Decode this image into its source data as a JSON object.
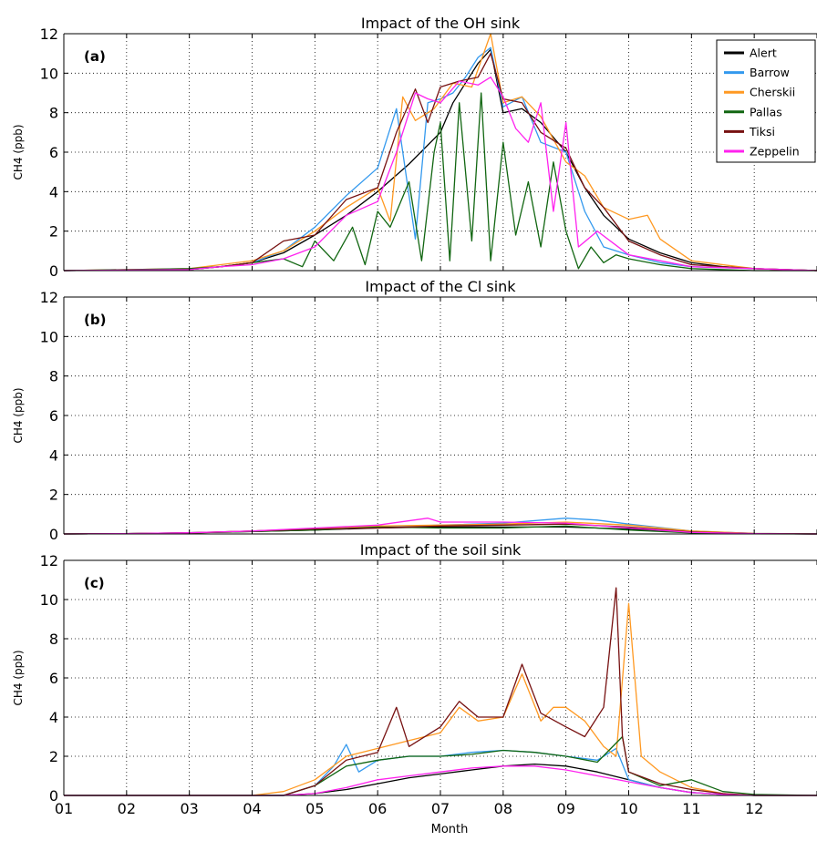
{
  "figure": {
    "xlabel": "Month",
    "month_ticks": [
      "01",
      "02",
      "03",
      "04",
      "05",
      "06",
      "07",
      "08",
      "09",
      "10",
      "11",
      "12"
    ]
  },
  "legend": {
    "placement": "top-right of panel (a)",
    "entries": [
      {
        "name": "Alert",
        "color": "#000000"
      },
      {
        "name": "Barrow",
        "color": "#3399ee"
      },
      {
        "name": "Cherskii",
        "color": "#ff9922"
      },
      {
        "name": "Pallas",
        "color": "#116611"
      },
      {
        "name": "Tiksi",
        "color": "#771111"
      },
      {
        "name": "Zeppelin",
        "color": "#ff22ee"
      }
    ]
  },
  "chart_data": [
    {
      "type": "line",
      "panel_label": "(a)",
      "title": "Impact of the OH sink",
      "ylabel": "CH4 (ppb)",
      "ylim": [
        0,
        12
      ],
      "yticks": [
        0,
        2,
        4,
        6,
        8,
        10,
        12
      ],
      "xlim": [
        1,
        13
      ],
      "grid": true,
      "series": [
        {
          "name": "Alert",
          "color": "#000000",
          "x": [
            1,
            3,
            3.5,
            4,
            4.5,
            5,
            5.5,
            6,
            6.5,
            7,
            7.2,
            7.4,
            7.6,
            7.8,
            8,
            8.3,
            8.6,
            9,
            9.3,
            9.6,
            10,
            10.5,
            11,
            11.5,
            12,
            13
          ],
          "y": [
            0,
            0.05,
            0.2,
            0.4,
            0.9,
            1.8,
            2.8,
            4,
            5.4,
            7,
            8.5,
            9.5,
            10.5,
            11.2,
            8,
            8.2,
            7.5,
            6,
            4.2,
            2.8,
            1.6,
            0.9,
            0.4,
            0.2,
            0.1,
            0
          ]
        },
        {
          "name": "Barrow",
          "color": "#3399ee",
          "x": [
            1,
            3,
            3.5,
            4,
            4.5,
            5,
            5.5,
            6,
            6.3,
            6.6,
            6.8,
            7,
            7.2,
            7.4,
            7.6,
            7.8,
            8,
            8.3,
            8.6,
            9,
            9.3,
            9.6,
            10,
            10.5,
            11,
            12,
            13
          ],
          "y": [
            0,
            0.05,
            0.2,
            0.4,
            1,
            2.2,
            3.8,
            5.2,
            8.2,
            1.6,
            8.5,
            8.7,
            9,
            9.8,
            10.8,
            11.3,
            8.3,
            8.8,
            6.5,
            6,
            3,
            1.2,
            0.8,
            0.4,
            0.2,
            0.1,
            0
          ]
        },
        {
          "name": "Cherskii",
          "color": "#ff9922",
          "x": [
            1,
            3,
            3.5,
            4,
            4.5,
            5,
            5.5,
            6,
            6.2,
            6.4,
            6.6,
            6.9,
            7.2,
            7.5,
            7.8,
            8,
            8.3,
            8.6,
            9,
            9.3,
            9.6,
            10,
            10.3,
            10.5,
            11,
            12,
            13
          ],
          "y": [
            0,
            0.1,
            0.3,
            0.5,
            1,
            2,
            3.2,
            4.2,
            2.5,
            8.8,
            7.6,
            8.2,
            9.5,
            9.3,
            12,
            8.5,
            8.8,
            7.8,
            5.5,
            4.8,
            3.2,
            2.6,
            2.8,
            1.6,
            0.5,
            0.1,
            0
          ]
        },
        {
          "name": "Pallas",
          "color": "#116611",
          "x": [
            1,
            3,
            3.5,
            4,
            4.5,
            4.8,
            5,
            5.3,
            5.6,
            5.8,
            6,
            6.2,
            6.5,
            6.7,
            6.9,
            7,
            7.15,
            7.3,
            7.5,
            7.65,
            7.8,
            8,
            8.2,
            8.4,
            8.6,
            8.8,
            9,
            9.2,
            9.4,
            9.6,
            9.8,
            10,
            10.5,
            11,
            12,
            13
          ],
          "y": [
            0,
            0.1,
            0.2,
            0.4,
            0.6,
            0.2,
            1.5,
            0.5,
            2.2,
            0.3,
            3,
            2.2,
            4.5,
            0.5,
            6,
            7.5,
            0.5,
            8.5,
            1.5,
            9,
            0.5,
            6.5,
            1.8,
            4.5,
            1.2,
            5.5,
            2,
            0.1,
            1.2,
            0.4,
            0.8,
            0.6,
            0.3,
            0.1,
            0,
            0
          ]
        },
        {
          "name": "Tiksi",
          "color": "#771111",
          "x": [
            1,
            3,
            3.5,
            4,
            4.5,
            5,
            5.5,
            6,
            6.3,
            6.6,
            6.8,
            7,
            7.3,
            7.6,
            7.8,
            8,
            8.3,
            8.6,
            9,
            9.3,
            9.6,
            10,
            10.5,
            11,
            12,
            13
          ],
          "y": [
            0,
            0.05,
            0.2,
            0.4,
            1.5,
            1.8,
            3.6,
            4.2,
            7,
            9.2,
            7.5,
            9.3,
            9.6,
            9.8,
            11,
            8.7,
            8.5,
            7,
            6.2,
            4.2,
            3.2,
            1.5,
            0.8,
            0.3,
            0.1,
            0
          ]
        },
        {
          "name": "Zeppelin",
          "color": "#ff22ee",
          "x": [
            1,
            3,
            3.5,
            4,
            4.5,
            5,
            5.5,
            6,
            6.3,
            6.6,
            6.8,
            7,
            7.3,
            7.6,
            7.8,
            8,
            8.2,
            8.4,
            8.6,
            8.8,
            9,
            9.2,
            9.5,
            10,
            10.5,
            11,
            12,
            13
          ],
          "y": [
            0,
            0.05,
            0.2,
            0.3,
            0.6,
            1.2,
            2.8,
            3.5,
            6,
            9,
            8.7,
            8.5,
            9.6,
            9.4,
            9.8,
            8.8,
            7.2,
            6.5,
            8.5,
            3,
            7.5,
            1.2,
            2,
            0.8,
            0.5,
            0.2,
            0.1,
            0
          ]
        }
      ]
    },
    {
      "type": "line",
      "panel_label": "(b)",
      "title": "Impact of the Cl sink",
      "ylabel": "CH4 (ppb)",
      "ylim": [
        0,
        12
      ],
      "yticks": [
        0,
        2,
        4,
        6,
        8,
        10,
        12
      ],
      "xlim": [
        1,
        13
      ],
      "grid": true,
      "series": [
        {
          "name": "Alert",
          "color": "#000000",
          "x": [
            1,
            2,
            3,
            4,
            5,
            6,
            7,
            8,
            9,
            10,
            11,
            12,
            13
          ],
          "y": [
            0,
            0.02,
            0.05,
            0.12,
            0.2,
            0.3,
            0.35,
            0.35,
            0.35,
            0.25,
            0.1,
            0.02,
            0
          ]
        },
        {
          "name": "Barrow",
          "color": "#3399ee",
          "x": [
            1,
            2,
            3,
            4,
            5,
            6,
            7,
            8,
            9,
            9.5,
            10,
            11,
            12,
            13
          ],
          "y": [
            0,
            0.02,
            0.06,
            0.15,
            0.25,
            0.35,
            0.45,
            0.55,
            0.8,
            0.7,
            0.5,
            0.15,
            0.03,
            0
          ]
        },
        {
          "name": "Cherskii",
          "color": "#ff9922",
          "x": [
            1,
            2,
            3,
            4,
            5,
            6,
            7,
            8,
            9,
            10,
            11,
            12,
            13
          ],
          "y": [
            0,
            0.02,
            0.06,
            0.15,
            0.28,
            0.4,
            0.45,
            0.5,
            0.6,
            0.45,
            0.15,
            0.03,
            0
          ]
        },
        {
          "name": "Pallas",
          "color": "#116611",
          "x": [
            1,
            2,
            3,
            4,
            5,
            6,
            7,
            8,
            9,
            10,
            11,
            12,
            13
          ],
          "y": [
            0,
            0.02,
            0.06,
            0.12,
            0.2,
            0.35,
            0.3,
            0.3,
            0.4,
            0.2,
            0.05,
            0.01,
            0
          ]
        },
        {
          "name": "Tiksi",
          "color": "#771111",
          "x": [
            1,
            2,
            3,
            4,
            5,
            6,
            7,
            8,
            9,
            10,
            11,
            12,
            13
          ],
          "y": [
            0,
            0.02,
            0.05,
            0.15,
            0.25,
            0.3,
            0.4,
            0.45,
            0.5,
            0.35,
            0.1,
            0.02,
            0
          ]
        },
        {
          "name": "Zeppelin",
          "color": "#ff22ee",
          "x": [
            1,
            2,
            3,
            4,
            5,
            6,
            6.8,
            7,
            8,
            9,
            10,
            11,
            12,
            13
          ],
          "y": [
            0,
            0.02,
            0.06,
            0.15,
            0.3,
            0.45,
            0.8,
            0.6,
            0.6,
            0.55,
            0.3,
            0.08,
            0.02,
            0
          ]
        }
      ]
    },
    {
      "type": "line",
      "panel_label": "(c)",
      "title": "Impact of the soil sink",
      "ylabel": "CH4 (ppb)",
      "ylim": [
        0,
        12
      ],
      "yticks": [
        0,
        2,
        4,
        6,
        8,
        10,
        12
      ],
      "xlim": [
        1,
        13
      ],
      "grid": true,
      "series": [
        {
          "name": "Alert",
          "color": "#000000",
          "x": [
            1,
            4.5,
            5,
            5.5,
            6,
            6.5,
            7,
            7.5,
            8,
            8.5,
            9,
            9.5,
            10,
            10.5,
            11,
            11.5,
            12,
            13
          ],
          "y": [
            0,
            0,
            0.1,
            0.3,
            0.6,
            0.9,
            1.1,
            1.3,
            1.5,
            1.6,
            1.5,
            1.2,
            0.8,
            0.4,
            0.15,
            0.05,
            0,
            0
          ]
        },
        {
          "name": "Barrow",
          "color": "#3399ee",
          "x": [
            1,
            4.5,
            5,
            5.3,
            5.5,
            5.7,
            6,
            6.5,
            7,
            7.5,
            8,
            8.5,
            9,
            9.5,
            9.8,
            10,
            10.5,
            11,
            11.5,
            12,
            13
          ],
          "y": [
            0,
            0,
            0.5,
            1.5,
            2.6,
            1.2,
            1.8,
            2,
            2,
            2.2,
            2.3,
            2.2,
            2.0,
            1.8,
            2.4,
            0.8,
            0.4,
            0.15,
            0.05,
            0,
            0
          ]
        },
        {
          "name": "Cherskii",
          "color": "#ff9922",
          "x": [
            1,
            4,
            4.5,
            5,
            5.5,
            6,
            6.5,
            7,
            7.3,
            7.6,
            8,
            8.3,
            8.6,
            8.8,
            9,
            9.3,
            9.6,
            9.8,
            10,
            10.2,
            10.5,
            11,
            11.5,
            12,
            13
          ],
          "y": [
            0,
            0,
            0.2,
            0.8,
            2,
            2.4,
            2.8,
            3.2,
            4.5,
            3.8,
            4,
            6.2,
            3.8,
            4.5,
            4.5,
            3.8,
            2.5,
            2,
            9.8,
            2,
            1.2,
            0.4,
            0.1,
            0,
            0
          ]
        },
        {
          "name": "Pallas",
          "color": "#116611",
          "x": [
            1,
            4.5,
            5,
            5.5,
            6,
            6.5,
            7,
            7.5,
            8,
            8.5,
            9,
            9.5,
            9.9,
            10,
            10.5,
            11,
            11.5,
            12,
            13
          ],
          "y": [
            0,
            0,
            0.5,
            1.5,
            1.8,
            2,
            2,
            2.1,
            2.3,
            2.2,
            2,
            1.7,
            3,
            1.2,
            0.5,
            0.8,
            0.2,
            0.05,
            0
          ]
        },
        {
          "name": "Tiksi",
          "color": "#771111",
          "x": [
            1,
            4.5,
            5,
            5.5,
            6,
            6.3,
            6.5,
            7,
            7.3,
            7.6,
            8,
            8.3,
            8.6,
            9,
            9.3,
            9.6,
            9.8,
            9.9,
            10,
            10.5,
            11,
            11.5,
            12,
            13
          ],
          "y": [
            0,
            0,
            0.5,
            1.8,
            2.2,
            4.5,
            2.5,
            3.5,
            4.8,
            4,
            4,
            6.7,
            4.2,
            3.5,
            3,
            4.5,
            10.6,
            3,
            1.2,
            0.6,
            0.3,
            0.1,
            0,
            0
          ]
        },
        {
          "name": "Zeppelin",
          "color": "#ff22ee",
          "x": [
            1,
            4.5,
            5,
            5.5,
            6,
            6.5,
            7,
            7.5,
            8,
            8.5,
            9,
            9.5,
            10,
            10.5,
            11,
            11.5,
            12,
            13
          ],
          "y": [
            0,
            0,
            0.1,
            0.4,
            0.8,
            1,
            1.2,
            1.4,
            1.5,
            1.5,
            1.3,
            1.0,
            0.7,
            0.4,
            0.15,
            0.05,
            0,
            0
          ]
        }
      ]
    }
  ]
}
